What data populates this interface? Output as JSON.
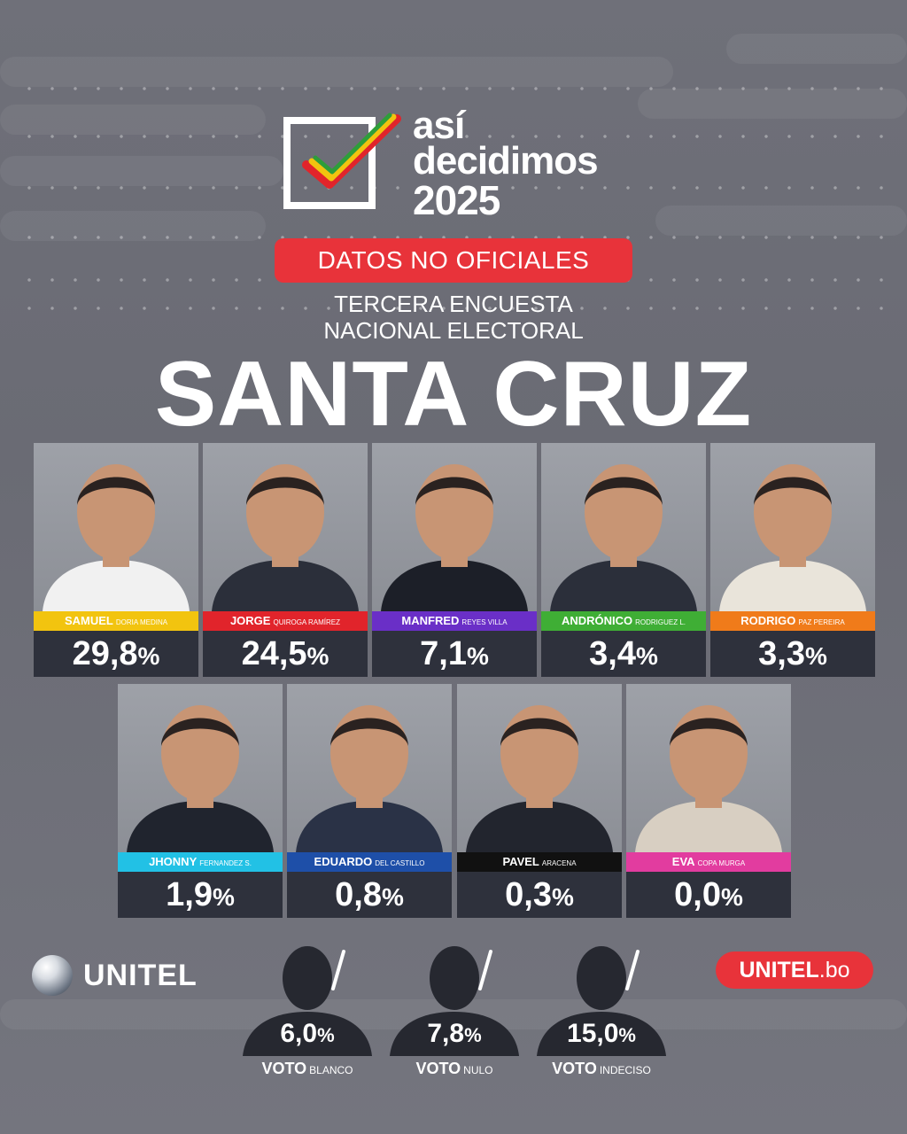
{
  "logo": {
    "line1": "así",
    "line2": "decidimos",
    "line3": "2025"
  },
  "badge": "DATOS NO OFICIALES",
  "subtitle_line1": "TERCERA ENCUESTA",
  "subtitle_line2": "NACIONAL ELECTORAL",
  "region": "SANTA CRUZ",
  "chart_data": {
    "type": "bar",
    "title": "SANTA CRUZ",
    "unit": "%",
    "candidates": [
      {
        "first": "SAMUEL",
        "last": "DORIA MEDINA",
        "value": 29.8,
        "label": "29,8",
        "color": "#f2c40f"
      },
      {
        "first": "JORGE",
        "last": "QUIROGA RAMÍREZ",
        "value": 24.5,
        "label": "24,5",
        "color": "#e1242b"
      },
      {
        "first": "MANFRED",
        "last": "REYES VILLA",
        "value": 7.1,
        "label": "7,1",
        "color": "#6a2fc7"
      },
      {
        "first": "ANDRÓNICO",
        "last": "RODRIGUEZ L.",
        "value": 3.4,
        "label": "3,4",
        "color": "#3fae35"
      },
      {
        "first": "RODRIGO",
        "last": "PAZ PEREIRA",
        "value": 3.3,
        "label": "3,3",
        "color": "#f07b1a"
      },
      {
        "first": "JHONNY",
        "last": "FERNANDEZ S.",
        "value": 1.9,
        "label": "1,9",
        "color": "#22c1e5"
      },
      {
        "first": "EDUARDO",
        "last": "DEL CASTILLO",
        "value": 0.8,
        "label": "0,8",
        "color": "#1e4fa8"
      },
      {
        "first": "PAVEL",
        "last": "ARACENA",
        "value": 0.3,
        "label": "0,3",
        "color": "#111111"
      },
      {
        "first": "EVA",
        "last": "COPA MURGA",
        "value": 0.0,
        "label": "0,0",
        "color": "#e23c9f"
      }
    ],
    "other_votes": [
      {
        "word": "VOTO",
        "kind": "BLANCO",
        "value": 6.0,
        "label": "6,0"
      },
      {
        "word": "VOTO",
        "kind": "NULO",
        "value": 7.8,
        "label": "7,8"
      },
      {
        "word": "VOTO",
        "kind": "INDECISO",
        "value": 15.0,
        "label": "15,0"
      }
    ]
  },
  "brand_left": "UNITEL",
  "brand_right": {
    "main": "UNITEL",
    "suffix": ".bo"
  },
  "colors": {
    "badge": "#e8333a",
    "panel": "#2e313c"
  }
}
